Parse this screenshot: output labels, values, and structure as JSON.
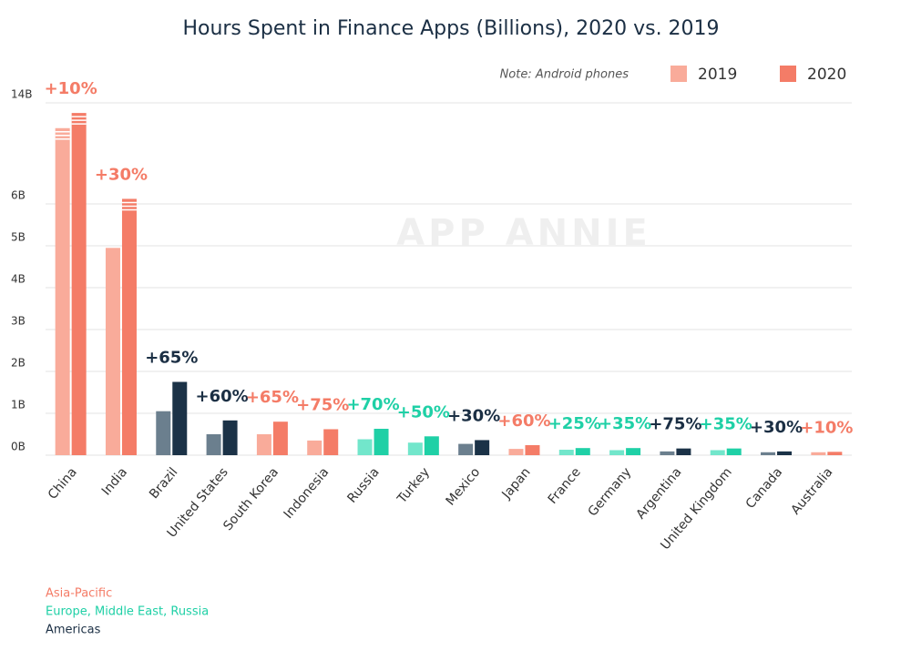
{
  "chart_data": {
    "type": "bar",
    "title": "Hours Spent in Finance Apps (Billions), 2020 vs. 2019",
    "note": "Note: Android phones",
    "watermark": "APP ANNIE",
    "categories": [
      "China",
      "India",
      "Brazil",
      "United States",
      "South Korea",
      "Indonesia",
      "Russia",
      "Turkey",
      "Mexico",
      "Japan",
      "France",
      "Germany",
      "Argentina",
      "United Kingdom",
      "Canada",
      "Australia"
    ],
    "series": [
      {
        "name": "2019",
        "color": "#f9ab9a",
        "values": [
          12,
          4.95,
          1.05,
          0.5,
          0.5,
          0.35,
          0.38,
          0.3,
          0.27,
          0.15,
          0.13,
          0.12,
          0.09,
          0.12,
          0.07,
          0.07
        ]
      },
      {
        "name": "2020",
        "color": "#f47c67",
        "values": [
          13.2,
          6.4,
          1.75,
          0.83,
          0.8,
          0.62,
          0.63,
          0.45,
          0.36,
          0.24,
          0.17,
          0.17,
          0.16,
          0.16,
          0.09,
          0.08
        ]
      }
    ],
    "annotations": [
      "+10%",
      "+30%",
      "+65%",
      "+60%",
      "+65%",
      "+75%",
      "+70%",
      "+50%",
      "+30%",
      "+60%",
      "+25%",
      "+35%",
      "+75%",
      "+35%",
      "+30%",
      "+10%"
    ],
    "regions": [
      {
        "name": "Asia-Pacific",
        "colors": [
          "#f9ab9a",
          "#f47c67"
        ],
        "label_color": "#f47c67"
      },
      {
        "name": "Europe, Middle East, Russia",
        "colors": [
          "#72e6cb",
          "#1fd0a6"
        ],
        "label_color": "#1fd0a6"
      },
      {
        "name": "Americas",
        "colors": [
          "#6b7f8e",
          "#1b3247"
        ],
        "label_color": "#1b2f44"
      }
    ],
    "category_regions": [
      0,
      0,
      2,
      2,
      0,
      0,
      1,
      1,
      2,
      0,
      1,
      1,
      2,
      1,
      2,
      0
    ],
    "ylim": [
      0,
      14
    ],
    "axis_break": 6,
    "yticks": [
      {
        "value": 0,
        "label": "0B"
      },
      {
        "value": 1,
        "label": "1B"
      },
      {
        "value": 2,
        "label": "2B"
      },
      {
        "value": 3,
        "label": "3B"
      },
      {
        "value": 4,
        "label": "4B"
      },
      {
        "value": 5,
        "label": "5B"
      },
      {
        "value": 6,
        "label": "6B"
      },
      {
        "value": 14,
        "label": "14B"
      }
    ],
    "grid": true
  }
}
